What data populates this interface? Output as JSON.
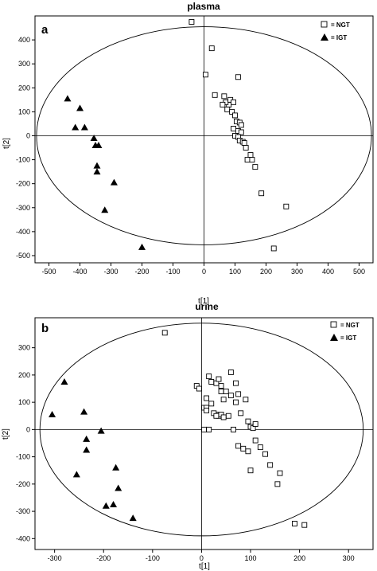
{
  "chart_data": [
    {
      "type": "scatter",
      "panel_label": "a",
      "title": "plasma",
      "xlabel": "t[1]",
      "ylabel": "t[2]",
      "xticks": [
        -500,
        -400,
        -300,
        -200,
        -100,
        0,
        100,
        200,
        300,
        400,
        500
      ],
      "yticks": [
        -500,
        -400,
        -300,
        -200,
        -100,
        0,
        100,
        200,
        300,
        400
      ],
      "xlim": [
        -545,
        545
      ],
      "ylim": [
        -530,
        500
      ],
      "ellipse": {
        "rx": 540,
        "ry": 455
      },
      "legend_position": "top-right",
      "series": [
        {
          "name": "= NGT",
          "marker": "open-square",
          "x": [
            -40,
            25,
            5,
            35,
            65,
            80,
            70,
            85,
            95,
            110,
            60,
            75,
            90,
            100,
            105,
            115,
            120,
            95,
            110,
            120,
            100,
            110,
            115,
            125,
            130,
            135,
            150,
            140,
            155,
            165,
            185,
            265,
            225
          ],
          "y": [
            475,
            365,
            255,
            170,
            165,
            130,
            140,
            150,
            140,
            245,
            130,
            110,
            100,
            85,
            60,
            55,
            45,
            30,
            20,
            15,
            0,
            -5,
            -20,
            -25,
            -30,
            -50,
            -80,
            -100,
            -100,
            -130,
            -240,
            -295,
            -470
          ]
        },
        {
          "name": "= IGT",
          "marker": "filled-triangle",
          "x": [
            -440,
            -400,
            -385,
            -415,
            -355,
            -350,
            -340,
            -345,
            -345,
            -290,
            -320,
            -200
          ],
          "y": [
            155,
            115,
            35,
            35,
            -10,
            -40,
            -40,
            -125,
            -150,
            -195,
            -310,
            -465
          ]
        }
      ]
    },
    {
      "type": "scatter",
      "panel_label": "b",
      "title": "urine",
      "xlabel": "t[1]",
      "ylabel": "t[2]",
      "xticks": [
        -300,
        -200,
        -100,
        0,
        100,
        200,
        300
      ],
      "yticks": [
        -400,
        -300,
        -200,
        -100,
        0,
        100,
        200,
        300
      ],
      "xlim": [
        -340,
        350
      ],
      "ylim": [
        -440,
        410
      ],
      "ellipse": {
        "rx": 330,
        "ry": 390
      },
      "legend_position": "top-right",
      "series": [
        {
          "name": "= NGT",
          "marker": "open-square",
          "x": [
            -75,
            -10,
            -5,
            5,
            15,
            20,
            30,
            35,
            40,
            40,
            45,
            10,
            20,
            30,
            35,
            60,
            70,
            50,
            60,
            75,
            70,
            90,
            55,
            80,
            95,
            100,
            105,
            110,
            10,
            10,
            5,
            15,
            25,
            30,
            40,
            45,
            65,
            75,
            85,
            95,
            100,
            110,
            120,
            130,
            140,
            155,
            160,
            190,
            210
          ],
          "y": [
            355,
            160,
            150,
            80,
            195,
            175,
            170,
            185,
            160,
            140,
            110,
            115,
            95,
            55,
            50,
            210,
            170,
            140,
            125,
            130,
            100,
            110,
            50,
            60,
            30,
            10,
            5,
            20,
            80,
            70,
            0,
            0,
            60,
            50,
            55,
            45,
            0,
            -60,
            -70,
            -80,
            -150,
            -40,
            -65,
            -90,
            -130,
            -200,
            -160,
            -345,
            -350
          ]
        },
        {
          "name": "= IGT",
          "marker": "filled-triangle",
          "x": [
            -305,
            -280,
            -240,
            -235,
            -235,
            -205,
            -255,
            -175,
            -170,
            -180,
            -195,
            -140
          ],
          "y": [
            55,
            175,
            65,
            -35,
            -75,
            -5,
            -165,
            -140,
            -215,
            -275,
            -280,
            -325
          ]
        }
      ]
    }
  ]
}
